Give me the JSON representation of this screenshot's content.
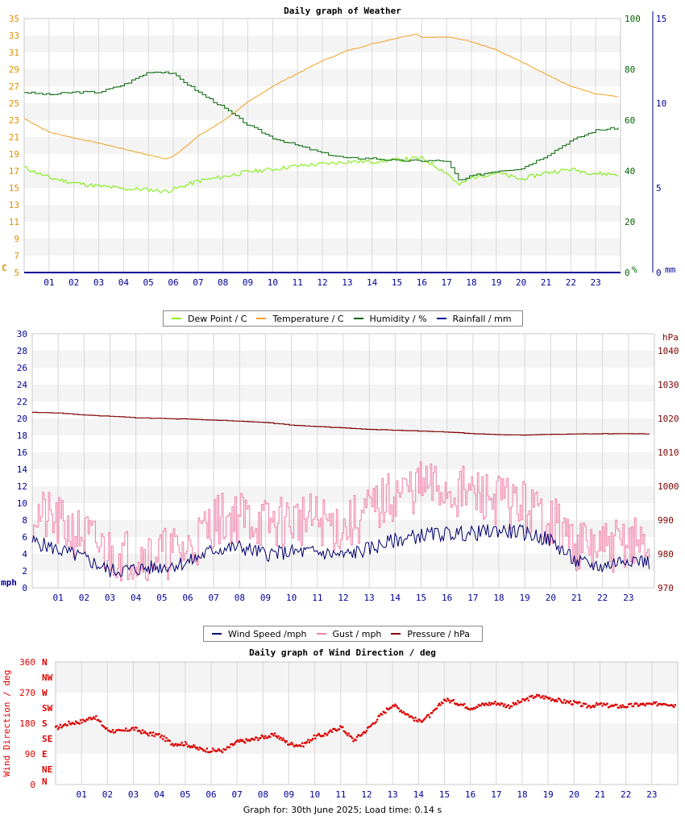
{
  "colors": {
    "temp": "#f0a020",
    "dew": "#88ee22",
    "hum": "#006400",
    "rain": "#000099",
    "wind": "#00006e",
    "gust": "#f080a8",
    "press": "#800000",
    "dir": "#dd0000",
    "band": "#f4f4f4",
    "grid": "#d8d8d8"
  },
  "chart_data": [
    {
      "type": "line",
      "title": "Daily graph of Weather",
      "x_labels": [
        "01",
        "02",
        "03",
        "04",
        "05",
        "06",
        "07",
        "08",
        "09",
        "10",
        "11",
        "12",
        "13",
        "14",
        "15",
        "16",
        "17",
        "18",
        "19",
        "20",
        "21",
        "22",
        "23"
      ],
      "y_left": {
        "label": "C",
        "ticks": [
          5,
          7,
          9,
          11,
          13,
          15,
          17,
          19,
          21,
          23,
          25,
          27,
          29,
          31,
          33,
          35
        ],
        "ylim": [
          5,
          35
        ]
      },
      "y_right_1": {
        "label": "%",
        "ticks": [
          0,
          20,
          40,
          60,
          80,
          100
        ],
        "ylim": [
          0,
          100
        ]
      },
      "y_right_2": {
        "label": "mm",
        "ticks": [
          0,
          5,
          10,
          15
        ],
        "ylim": [
          0,
          15
        ]
      },
      "x": [
        0,
        1,
        2,
        3,
        4,
        5,
        5.7,
        6,
        7,
        8,
        9,
        10,
        11,
        12,
        13,
        14,
        15,
        15.8,
        16,
        17,
        17.5,
        18,
        19,
        20,
        21,
        22,
        23,
        23.9
      ],
      "series": [
        {
          "name": "Temperature / C",
          "axis": "left",
          "values": [
            23.2,
            21.6,
            20.9,
            20.3,
            19.6,
            18.9,
            18.4,
            18.7,
            21.1,
            22.9,
            25.1,
            27.0,
            28.5,
            30.0,
            31.2,
            32.0,
            32.7,
            33.2,
            32.8,
            32.8,
            32.6,
            32.3,
            31.3,
            29.9,
            28.4,
            27.0,
            26.1,
            25.8
          ]
        },
        {
          "name": "Dew Point / C",
          "axis": "left",
          "values": [
            17.4,
            16.2,
            15.6,
            15.2,
            14.9,
            14.8,
            14.6,
            14.8,
            15.8,
            16.3,
            16.9,
            17.2,
            17.6,
            17.8,
            18.1,
            18.1,
            18.3,
            18.5,
            18.5,
            16.8,
            15.3,
            16.2,
            16.8,
            16.0,
            16.8,
            17.2,
            16.7,
            16.6
          ]
        },
        {
          "name": "Humidity / %",
          "axis": "right_1",
          "values": [
            71,
            70,
            71,
            71,
            74,
            79,
            79,
            78,
            71,
            65,
            58,
            53,
            50,
            47,
            45,
            45,
            44,
            44,
            44,
            44,
            36,
            38,
            40,
            41,
            46,
            52,
            56,
            57
          ]
        },
        {
          "name": "Rainfall / mm",
          "axis": "right_2",
          "values": [
            0,
            0,
            0,
            0,
            0,
            0,
            0,
            0,
            0,
            0,
            0,
            0,
            0,
            0,
            0,
            0,
            0,
            0,
            0,
            0,
            0,
            0,
            0,
            0,
            0,
            0,
            0,
            0
          ]
        }
      ]
    },
    {
      "type": "line",
      "title": "",
      "x_labels": [
        "01",
        "02",
        "03",
        "04",
        "05",
        "06",
        "07",
        "08",
        "09",
        "10",
        "11",
        "12",
        "13",
        "14",
        "15",
        "16",
        "17",
        "18",
        "19",
        "20",
        "21",
        "22",
        "23"
      ],
      "y_left": {
        "label": "mph",
        "ticks": [
          0,
          2,
          4,
          6,
          8,
          10,
          12,
          14,
          16,
          18,
          20,
          22,
          24,
          26,
          28,
          30
        ],
        "ylim": [
          0,
          30
        ]
      },
      "y_right_1": {
        "label": "hPa",
        "ticks": [
          970,
          980,
          990,
          1000,
          1010,
          1020,
          1030,
          1040
        ],
        "ylim": [
          970,
          1045
        ]
      },
      "x": [
        0,
        1,
        2,
        3,
        4,
        5,
        6,
        7,
        8,
        9,
        10,
        11,
        12,
        13,
        14,
        15,
        16,
        17,
        18,
        19,
        20,
        21,
        22,
        23,
        23.8
      ],
      "series": [
        {
          "name": "Wind Speed /mph",
          "axis": "left",
          "values": [
            5.5,
            4.5,
            3.5,
            2.0,
            2.2,
            2.5,
            3.0,
            4.5,
            4.8,
            4.0,
            4.2,
            4.2,
            3.8,
            4.6,
            5.6,
            6.2,
            6.4,
            6.4,
            6.8,
            6.5,
            5.6,
            3.0,
            2.5,
            3.5,
            3.0
          ]
        },
        {
          "name": "Gust / mph",
          "axis": "left",
          "values": [
            9,
            7.5,
            6,
            4,
            4,
            4,
            4.5,
            8,
            8.5,
            7.5,
            8,
            8,
            7,
            9,
            11,
            12,
            11.5,
            11,
            10.5,
            9.5,
            8,
            5,
            4.5,
            5.5,
            5
          ]
        },
        {
          "name": "Pressure / hPa",
          "axis": "right_1",
          "values": [
            1021.8,
            1021.6,
            1021.0,
            1020.6,
            1020.2,
            1020.0,
            1019.8,
            1019.5,
            1019.2,
            1018.8,
            1018.0,
            1017.6,
            1017.2,
            1016.8,
            1016.5,
            1016.3,
            1016.0,
            1015.5,
            1015.2,
            1015.1,
            1015.3,
            1015.4,
            1015.5,
            1015.5,
            1015.4
          ]
        }
      ]
    },
    {
      "type": "scatter",
      "title": "Daily graph of Wind Direction / deg",
      "x_labels": [
        "01",
        "02",
        "03",
        "04",
        "05",
        "06",
        "07",
        "08",
        "09",
        "10",
        "11",
        "12",
        "13",
        "14",
        "15",
        "16",
        "17",
        "18",
        "19",
        "20",
        "21",
        "22",
        "23"
      ],
      "y_left": {
        "label": "Wind Direction / deg",
        "ticks": [
          0,
          90,
          180,
          270,
          360
        ],
        "ylim": [
          0,
          360
        ]
      },
      "compass": [
        "N",
        "NE",
        "E",
        "SE",
        "S",
        "SW",
        "W",
        "NW",
        "N"
      ],
      "x": [
        0,
        0.5,
        1,
        1.5,
        2,
        2.5,
        3,
        3.5,
        4,
        4.5,
        5,
        5.5,
        6,
        6.5,
        7,
        7.5,
        8,
        8.5,
        9,
        9.5,
        10,
        10.5,
        11,
        11.5,
        12,
        12.5,
        13,
        13.5,
        14,
        14.5,
        15,
        15.5,
        16,
        16.5,
        17,
        17.5,
        18,
        18.5,
        19,
        19.5,
        20,
        20.5,
        21,
        21.5,
        22,
        22.5,
        23,
        23.5,
        23.9
      ],
      "series": [
        {
          "name": "Wind Direction / deg",
          "values": [
            165,
            180,
            185,
            200,
            160,
            155,
            165,
            150,
            145,
            120,
            120,
            105,
            100,
            100,
            125,
            130,
            140,
            145,
            120,
            115,
            140,
            150,
            170,
            130,
            160,
            200,
            235,
            210,
            185,
            205,
            250,
            240,
            225,
            235,
            240,
            230,
            245,
            260,
            255,
            245,
            240,
            230,
            235,
            230,
            230,
            235,
            235,
            240,
            232
          ]
        }
      ]
    }
  ],
  "legend1": [
    "Dew Point / C",
    "Temperature / C",
    "Humidity / %",
    "Rainfall / mm"
  ],
  "legend2": [
    "Wind Speed /mph",
    "Gust / mph",
    "Pressure / hPa"
  ],
  "footer": "Graph for: 30th June 2025; Load time: 0.14 s"
}
